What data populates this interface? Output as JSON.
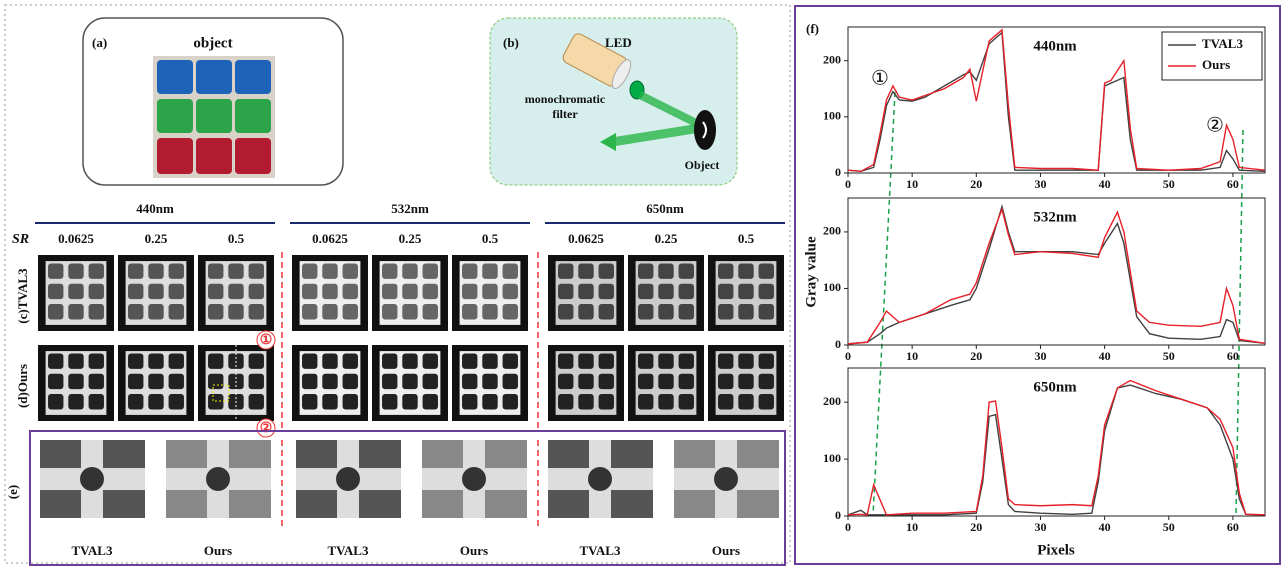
{
  "panel_a": {
    "label": "(a)",
    "title": "object"
  },
  "panel_b": {
    "label": "(b)",
    "source": "LED",
    "filter_line1": "monochromatic",
    "filter_line2": "filter",
    "target": "Object"
  },
  "panel_cd": {
    "wavelengths": [
      "440nm",
      "532nm",
      "650nm"
    ],
    "sr_label": "SR",
    "sampling_ratios": [
      "0.0625",
      "0.25",
      "0.5"
    ],
    "rows": [
      "(c)TVAL3",
      "(d)Ours"
    ],
    "markers": [
      "①",
      "②"
    ]
  },
  "panel_e": {
    "label": "(e)",
    "captions": [
      "TVAL3",
      "Ours",
      "TVAL3",
      "Ours",
      "TVAL3",
      "Ours"
    ]
  },
  "panel_f": {
    "label": "(f)",
    "ylabel": "Gray value",
    "xlabel": "Pixels"
  },
  "chart_data": [
    {
      "type": "line",
      "title": "440nm",
      "legend": "upper right",
      "annotations": [
        "①",
        "②"
      ],
      "x": [
        0,
        2,
        4,
        5,
        6,
        7,
        8,
        10,
        12,
        15,
        18,
        19,
        20,
        22,
        24,
        25,
        26,
        30,
        35,
        39,
        40,
        41,
        43,
        44,
        45,
        50,
        55,
        58,
        59,
        60,
        61,
        65
      ],
      "series": [
        {
          "name": "TVAL3",
          "color": "#404040",
          "values": [
            5,
            3,
            10,
            60,
            120,
            145,
            130,
            128,
            135,
            155,
            175,
            180,
            165,
            230,
            250,
            100,
            5,
            5,
            5,
            5,
            155,
            160,
            170,
            60,
            5,
            5,
            5,
            10,
            40,
            25,
            5,
            3
          ]
        },
        {
          "name": "Ours",
          "color": "#e8202a",
          "values": [
            5,
            3,
            15,
            70,
            130,
            155,
            135,
            130,
            138,
            150,
            170,
            185,
            128,
            235,
            255,
            120,
            10,
            8,
            8,
            5,
            160,
            165,
            200,
            80,
            8,
            5,
            8,
            20,
            85,
            60,
            10,
            5
          ]
        }
      ],
      "xlim": [
        0,
        65
      ],
      "xticks": [
        0,
        10,
        20,
        30,
        40,
        50,
        60
      ],
      "ylim": [
        0,
        260
      ],
      "yticks": [
        0,
        100,
        200
      ]
    },
    {
      "type": "line",
      "title": "532nm",
      "x": [
        0,
        3,
        5,
        6,
        8,
        12,
        16,
        19,
        20,
        22,
        24,
        25,
        26,
        30,
        35,
        39,
        40,
        42,
        43,
        45,
        47,
        50,
        55,
        58,
        59,
        60,
        61,
        65
      ],
      "series": [
        {
          "name": "TVAL3",
          "color": "#404040",
          "values": [
            2,
            5,
            20,
            30,
            40,
            55,
            70,
            80,
            100,
            170,
            245,
            200,
            165,
            165,
            165,
            160,
            180,
            215,
            180,
            50,
            20,
            12,
            10,
            15,
            45,
            40,
            8,
            3
          ]
        },
        {
          "name": "Ours",
          "color": "#e8202a",
          "values": [
            2,
            5,
            40,
            60,
            40,
            55,
            80,
            90,
            110,
            180,
            240,
            195,
            160,
            165,
            162,
            155,
            190,
            235,
            200,
            60,
            40,
            35,
            33,
            40,
            100,
            70,
            10,
            3
          ]
        }
      ],
      "xlim": [
        0,
        65
      ],
      "xticks": [
        0,
        10,
        20,
        30,
        40,
        50,
        60
      ],
      "ylim": [
        0,
        260
      ],
      "yticks": [
        0,
        100,
        200
      ]
    },
    {
      "type": "line",
      "title": "650nm",
      "x": [
        0,
        2,
        3,
        4,
        6,
        10,
        15,
        20,
        21,
        22,
        23,
        24,
        25,
        26,
        30,
        35,
        38,
        39,
        40,
        42,
        44,
        48,
        52,
        56,
        58,
        60,
        61,
        62,
        65
      ],
      "series": [
        {
          "name": "TVAL3",
          "color": "#404040",
          "values": [
            2,
            10,
            2,
            2,
            2,
            2,
            2,
            5,
            60,
            175,
            178,
            100,
            20,
            8,
            5,
            3,
            5,
            60,
            150,
            225,
            230,
            215,
            205,
            190,
            160,
            100,
            30,
            3,
            2
          ]
        },
        {
          "name": "Ours",
          "color": "#e8202a",
          "values": [
            2,
            3,
            2,
            55,
            2,
            5,
            5,
            8,
            70,
            200,
            202,
            120,
            30,
            20,
            18,
            20,
            18,
            70,
            160,
            225,
            238,
            220,
            205,
            190,
            170,
            120,
            40,
            3,
            2
          ]
        }
      ],
      "xlim": [
        0,
        65
      ],
      "xticks": [
        0,
        10,
        20,
        30,
        40,
        50,
        60
      ],
      "ylim": [
        0,
        260
      ],
      "yticks": [
        0,
        100,
        200
      ]
    }
  ]
}
